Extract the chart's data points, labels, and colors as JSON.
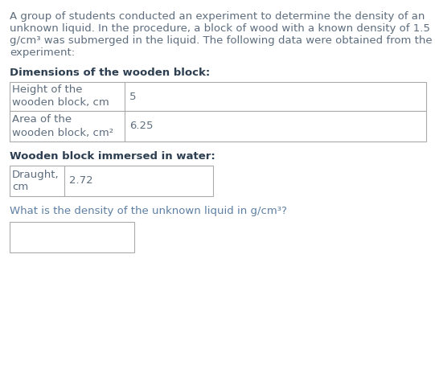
{
  "intro_lines": [
    "A group of students conducted an experiment to determine the density of an",
    "unknown liquid. In the procedure, a block of wood with a known density of 1.5",
    "g/cm³ was submerged in the liquid. The following data were obtained from the",
    "experiment:"
  ],
  "section1_title": "Dimensions of the wooden block:",
  "table1_rows": [
    [
      "Height of the\nwooden block, cm",
      "5"
    ],
    [
      "Area of the\nwooden block, cm²",
      "6.25"
    ]
  ],
  "section2_title": "Wooden block immersed in water:",
  "table2_rows": [
    [
      "Draught,\ncm",
      "2.72"
    ]
  ],
  "question_text": "What is the density of the unknown liquid in g/cm³?",
  "bg_color": "#ffffff",
  "text_color": "#5d6d7e",
  "bold_color": "#2c3e50",
  "question_color": "#5d7fa3",
  "font_size_intro": 9.5,
  "font_size_section": 9.5,
  "font_size_table": 9.5,
  "font_size_question": 9.5,
  "fig_w": 5.41,
  "fig_h": 4.54,
  "dpi": 100
}
